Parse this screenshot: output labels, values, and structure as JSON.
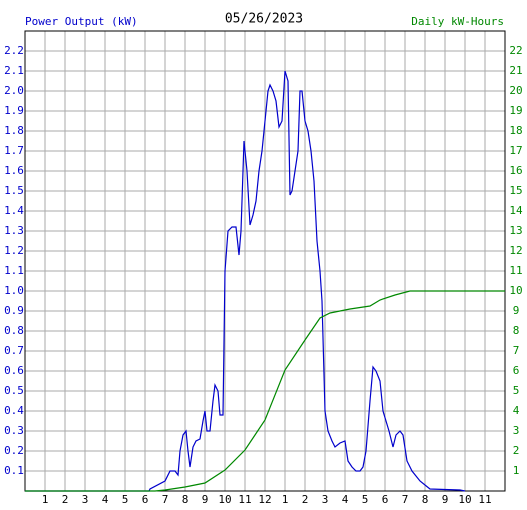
{
  "chart_data": {
    "type": "line",
    "title": "05/26/2023",
    "xlim": [
      0,
      24
    ],
    "xticks": [
      1,
      2,
      3,
      4,
      5,
      6,
      7,
      8,
      9,
      10,
      11,
      12,
      {
        "value": 13,
        "label": "1"
      },
      {
        "value": 14,
        "label": "2"
      },
      {
        "value": 15,
        "label": "3"
      },
      {
        "value": 16,
        "label": "4"
      },
      {
        "value": 17,
        "label": "5"
      },
      {
        "value": 18,
        "label": "6"
      },
      {
        "value": 19,
        "label": "7"
      },
      {
        "value": 20,
        "label": "8"
      },
      {
        "value": 21,
        "label": "9"
      },
      {
        "value": 22,
        "label": "10"
      },
      {
        "value": 23,
        "label": "11"
      }
    ],
    "ylim": [
      0,
      2.3
    ],
    "yticks": [
      0.1,
      0.2,
      0.3,
      0.4,
      0.5,
      0.6,
      0.7,
      0.8,
      0.9,
      {
        "value": 1,
        "label": "1.0"
      },
      1.1,
      1.2,
      1.3,
      1.4,
      1.5,
      1.6,
      1.7,
      1.8,
      1.9,
      {
        "value": 2,
        "label": "2.0"
      },
      2.1,
      2.2
    ],
    "y2lim": [
      0,
      23
    ],
    "y2ticks": [
      1,
      2,
      3,
      4,
      5,
      6,
      7,
      8,
      9,
      10,
      11,
      12,
      13,
      14,
      15,
      16,
      17,
      18,
      19,
      20,
      21,
      22
    ],
    "grid": true,
    "series": [
      {
        "name": "Power Output (kW)",
        "color": "#0000cc",
        "axis": "y",
        "x": [
          0,
          6.2,
          6.25,
          7,
          7.25,
          7.5,
          7.65,
          7.75,
          7.9,
          8.05,
          8.15,
          8.25,
          8.4,
          8.55,
          8.75,
          8.9,
          9,
          9.1,
          9.25,
          9.4,
          9.5,
          9.65,
          9.75,
          9.9,
          10,
          10.15,
          10.35,
          10.55,
          10.7,
          10.8,
          10.95,
          11.1,
          11.25,
          11.4,
          11.55,
          11.7,
          11.85,
          12,
          12.15,
          12.25,
          12.4,
          12.55,
          12.7,
          12.85,
          13,
          13.15,
          13.25,
          13.35,
          13.5,
          13.65,
          13.75,
          13.85,
          14,
          14.15,
          14.3,
          14.45,
          14.6,
          14.75,
          14.85,
          15,
          15.15,
          15.35,
          15.5,
          15.75,
          16,
          16.15,
          16.35,
          16.55,
          16.75,
          16.9,
          17.05,
          17.25,
          17.4,
          17.55,
          17.75,
          17.9,
          18.05,
          18.2,
          18.4,
          18.55,
          18.75,
          18.9,
          19.1,
          19.35,
          19.75,
          20,
          20.25,
          21.75,
          22
        ],
        "values": [
          0,
          0,
          0.01,
          0.05,
          0.1,
          0.1,
          0.08,
          0.2,
          0.28,
          0.3,
          0.2,
          0.12,
          0.22,
          0.25,
          0.26,
          0.35,
          0.4,
          0.3,
          0.3,
          0.45,
          0.53,
          0.5,
          0.38,
          0.38,
          1.1,
          1.3,
          1.32,
          1.32,
          1.18,
          1.3,
          1.75,
          1.6,
          1.33,
          1.38,
          1.45,
          1.6,
          1.7,
          1.85,
          2.0,
          2.03,
          2.0,
          1.95,
          1.82,
          1.85,
          2.1,
          2.05,
          1.48,
          1.5,
          1.6,
          1.7,
          2.0,
          2.0,
          1.85,
          1.8,
          1.7,
          1.55,
          1.25,
          1.1,
          0.95,
          0.4,
          0.3,
          0.25,
          0.22,
          0.24,
          0.25,
          0.15,
          0.12,
          0.1,
          0.1,
          0.12,
          0.2,
          0.45,
          0.62,
          0.6,
          0.55,
          0.4,
          0.35,
          0.3,
          0.22,
          0.28,
          0.3,
          0.28,
          0.15,
          0.1,
          0.05,
          0.03,
          0.01,
          0.005,
          0
        ]
      },
      {
        "name": "Daily kW-Hours",
        "color": "#008800",
        "axis": "y2",
        "x": [
          0,
          6.5,
          7,
          8,
          9,
          10,
          11,
          12,
          13,
          14,
          14.75,
          15.25,
          16.25,
          17.25,
          17.75,
          18.5,
          19.25,
          24
        ],
        "values": [
          0,
          0,
          0.05,
          0.2,
          0.4,
          1.05,
          2.05,
          3.55,
          6.05,
          7.55,
          8.65,
          8.9,
          9.1,
          9.25,
          9.55,
          9.8,
          10,
          10
        ]
      }
    ]
  }
}
